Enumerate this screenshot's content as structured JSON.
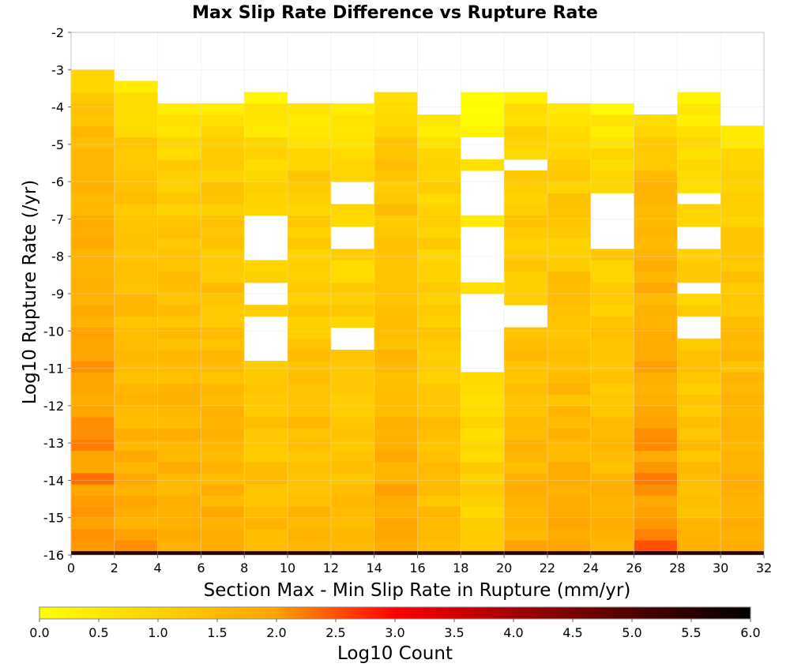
{
  "chart_data": {
    "type": "heatmap",
    "title": "Max Slip Rate Difference vs Rupture Rate",
    "xlabel": "Section Max - Min Slip Rate in Rupture (mm/yr)",
    "ylabel": "Log10 Rupture Rate (/yr)",
    "colorbar_label": "Log10 Count",
    "xlim": [
      0,
      32
    ],
    "ylim": [
      -16,
      -2
    ],
    "x_ticks": [
      0,
      2,
      4,
      6,
      8,
      10,
      12,
      14,
      16,
      18,
      20,
      22,
      24,
      26,
      28,
      30,
      32
    ],
    "y_ticks": [
      -2,
      -3,
      -4,
      -5,
      -6,
      -7,
      -8,
      -9,
      -10,
      -11,
      -12,
      -13,
      -14,
      -15,
      -16
    ],
    "colorbar_ticks": [
      "0.0",
      "0.5",
      "1.0",
      "1.5",
      "2.0",
      "2.5",
      "3.0",
      "3.5",
      "4.0",
      "4.5",
      "5.0",
      "5.5",
      "6.0"
    ],
    "colorbar_range": [
      0,
      6
    ],
    "colors": [
      "#ffff00",
      "#ffa500",
      "#ff0000",
      "#000000"
    ],
    "grid": true,
    "x_bin_width": 2,
    "y_bin_height": 0.3,
    "y_bin_start": -16,
    "x_bins": [
      1,
      3,
      5,
      7,
      9,
      11,
      13,
      15,
      17,
      19,
      21,
      23,
      25,
      27,
      29,
      31
    ],
    "column_tops": [
      -3.0,
      -3.3,
      -3.9,
      -3.9,
      -3.6,
      -3.9,
      -3.9,
      -3.6,
      -4.2,
      -3.6,
      -3.6,
      -3.9,
      -3.9,
      -4.2,
      -3.6,
      -4.5
    ],
    "column_base": [
      1.4,
      1.05,
      1.0,
      1.0,
      0.8,
      0.95,
      0.75,
      1.1,
      0.85,
      0.5,
      0.95,
      1.0,
      0.8,
      1.35,
      0.75,
      1.0
    ],
    "column_deep": [
      2.3,
      1.95,
      1.9,
      1.85,
      1.55,
      1.6,
      1.5,
      2.0,
      1.55,
      1.15,
      1.8,
      1.85,
      1.75,
      2.3,
      1.6,
      1.85
    ],
    "empty_bands": [
      {
        "x": 9,
        "y_ranges": [
          [
            -8.1,
            -6.9
          ],
          [
            -9.3,
            -8.7
          ],
          [
            -10.8,
            -9.6
          ]
        ]
      },
      {
        "x": 13,
        "y_ranges": [
          [
            -6.6,
            -6.0
          ],
          [
            -7.8,
            -7.2
          ]
        ]
      },
      {
        "x": 13,
        "y_ranges": [
          [
            -10.5,
            -9.9
          ]
        ]
      },
      {
        "x": 19,
        "y_ranges": [
          [
            -5.4,
            -4.8
          ],
          [
            -6.9,
            -5.7
          ],
          [
            -11.1,
            -8.9
          ],
          [
            -8.7,
            -7.2
          ]
        ]
      },
      {
        "x": 21,
        "y_ranges": [
          [
            -5.7,
            -5.4
          ],
          [
            -9.9,
            -9.3
          ]
        ]
      },
      {
        "x": 25,
        "y_ranges": [
          [
            -7.8,
            -6.2
          ]
        ]
      },
      {
        "x": 29,
        "y_ranges": [
          [
            -6.6,
            -6.3
          ],
          [
            -7.8,
            -7.2
          ]
        ]
      },
      {
        "x": 29,
        "y_ranges": [
          [
            -10.2,
            -9.6
          ],
          [
            -9.0,
            -8.7
          ]
        ]
      }
    ],
    "bottom_row": {
      "y_range": [
        -16,
        -15.9
      ],
      "value": 5.6
    }
  }
}
